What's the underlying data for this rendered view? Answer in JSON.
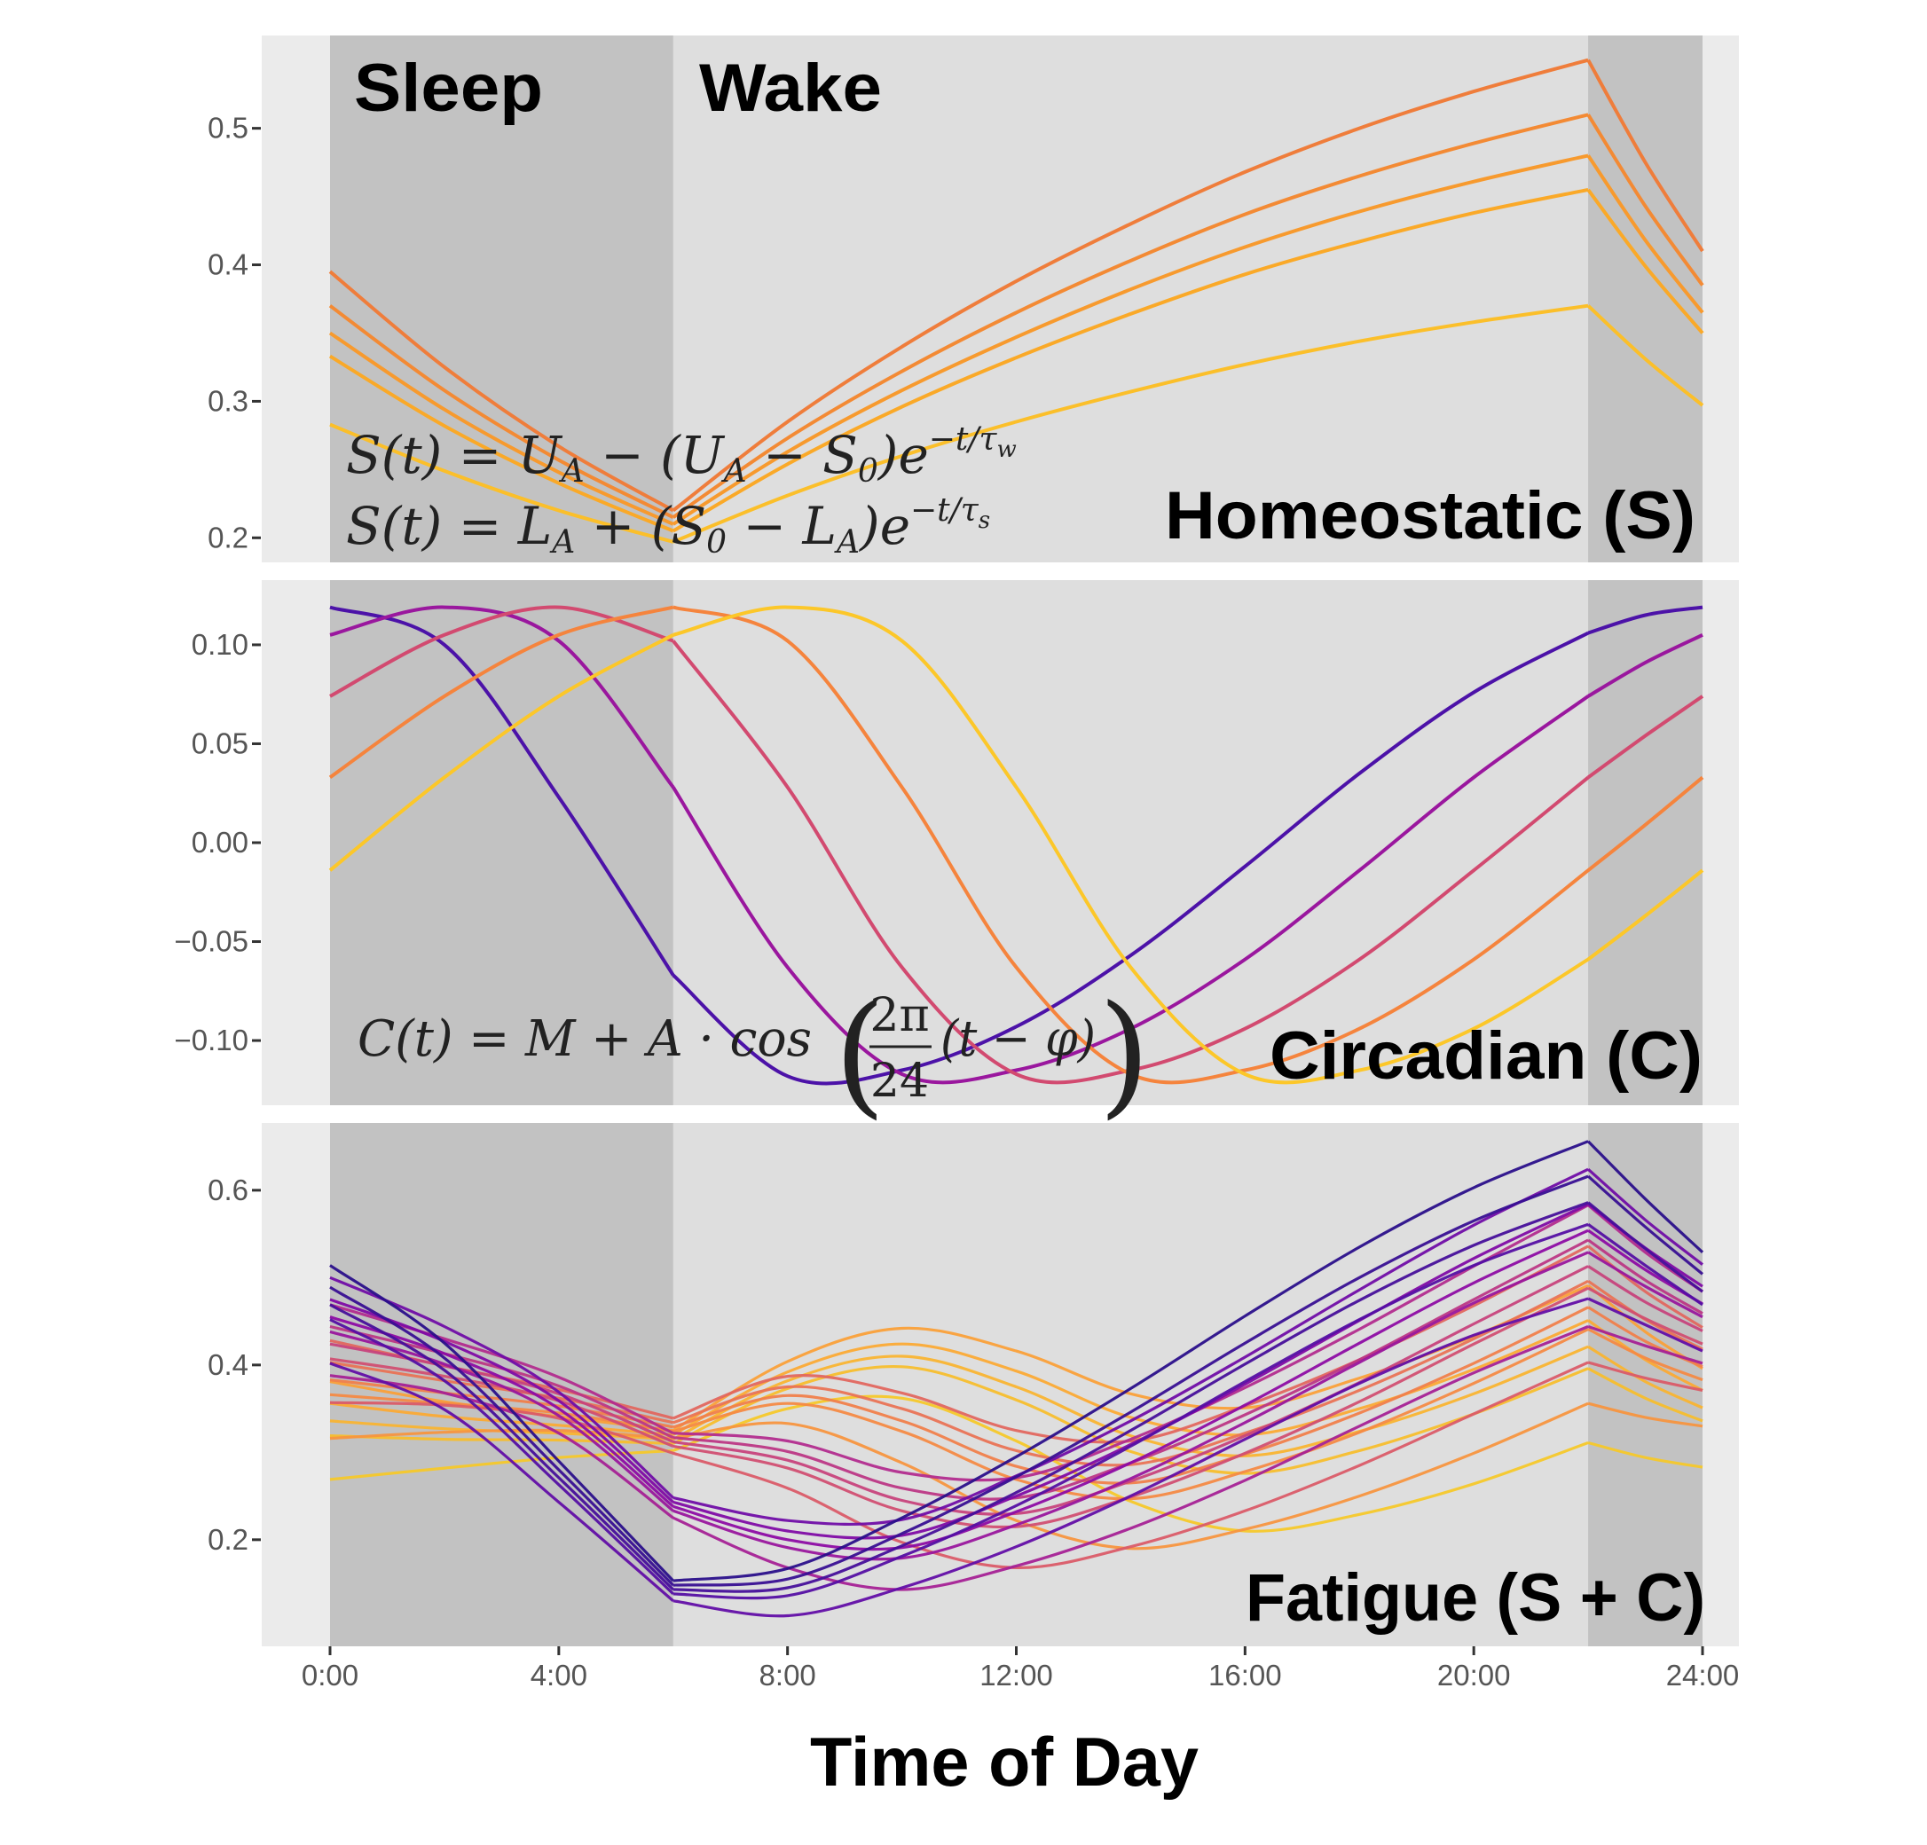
{
  "chart_data": [
    {
      "type": "line",
      "panel_label": "Homeostatic (S)",
      "x_unit": "hour of day",
      "ylim": [
        0.182,
        0.568
      ],
      "yticks": [
        0.2,
        0.3,
        0.4,
        0.5
      ],
      "ytick_labels": [
        "0.2",
        "0.3",
        "0.4",
        "0.5"
      ],
      "x": [
        0,
        2,
        4,
        6,
        8,
        10,
        12,
        14,
        16,
        18,
        20,
        22,
        23,
        24
      ],
      "series": [
        {
          "color": "#ef7d3b",
          "values": [
            0.395,
            0.325,
            0.267,
            0.22,
            0.285,
            0.34,
            0.388,
            0.43,
            0.468,
            0.5,
            0.527,
            0.55,
            0.475,
            0.41
          ]
        },
        {
          "color": "#f38a34",
          "values": [
            0.37,
            0.308,
            0.257,
            0.215,
            0.273,
            0.322,
            0.365,
            0.403,
            0.437,
            0.465,
            0.489,
            0.51,
            0.443,
            0.385
          ]
        },
        {
          "color": "#f79a2e",
          "values": [
            0.35,
            0.294,
            0.248,
            0.21,
            0.263,
            0.308,
            0.347,
            0.382,
            0.413,
            0.439,
            0.461,
            0.48,
            0.418,
            0.365
          ]
        },
        {
          "color": "#faa928",
          "values": [
            0.333,
            0.282,
            0.24,
            0.205,
            0.254,
            0.296,
            0.332,
            0.364,
            0.393,
            0.417,
            0.438,
            0.455,
            0.399,
            0.35
          ]
        },
        {
          "color": "#fbbf2a",
          "values": [
            0.283,
            0.249,
            0.22,
            0.197,
            0.231,
            0.26,
            0.285,
            0.307,
            0.327,
            0.344,
            0.358,
            0.37,
            0.331,
            0.297
          ]
        }
      ],
      "equations": {
        "wake": [
          "S(t) = ",
          "U",
          "A",
          " − (",
          "U",
          "A",
          " − ",
          "S",
          "0",
          ")",
          "e",
          "−t/τ",
          "w"
        ],
        "sleep": [
          "S(t) = ",
          "L",
          "A",
          " + (",
          "S",
          "0",
          " − ",
          "L",
          "A",
          ")",
          "e",
          "−t/τ",
          "s"
        ]
      }
    },
    {
      "type": "line",
      "panel_label": "Circadian (C)",
      "ylim": [
        -0.1327,
        0.1327
      ],
      "yticks": [
        0.1,
        0.05,
        0.0,
        -0.05,
        -0.1
      ],
      "ytick_labels": [
        "0.10",
        "0.05",
        "0.00",
        "−0.05",
        "−0.10"
      ],
      "x": [
        0,
        2,
        4,
        6,
        8,
        10,
        12,
        14,
        16,
        18,
        20,
        22,
        23,
        24
      ],
      "series": [
        {
          "color": "#4c12a8",
          "values": [
            0.119,
            0.1,
            0.023,
            -0.067,
            -0.118,
            -0.115,
            -0.093,
            -0.057,
            -0.012,
            0.035,
            0.076,
            0.106,
            0.115,
            0.119
          ]
        },
        {
          "color": "#9a179e",
          "values": [
            0.105,
            0.119,
            0.102,
            0.028,
            -0.063,
            -0.117,
            -0.115,
            -0.094,
            -0.059,
            -0.014,
            0.033,
            0.074,
            0.091,
            0.105
          ]
        },
        {
          "color": "#d24a70",
          "values": [
            0.074,
            0.105,
            0.119,
            0.102,
            0.028,
            -0.063,
            -0.117,
            -0.115,
            -0.094,
            -0.059,
            -0.014,
            0.033,
            0.054,
            0.074
          ]
        },
        {
          "color": "#f5843d",
          "values": [
            0.033,
            0.074,
            0.105,
            0.119,
            0.102,
            0.028,
            -0.063,
            -0.117,
            -0.115,
            -0.094,
            -0.059,
            -0.014,
            0.009,
            0.033
          ]
        },
        {
          "color": "#fcc729",
          "values": [
            -0.014,
            0.033,
            0.074,
            0.105,
            0.119,
            0.102,
            0.028,
            -0.063,
            -0.117,
            -0.115,
            -0.094,
            -0.059,
            -0.037,
            -0.014
          ]
        }
      ],
      "equation": {
        "lhs": "C(t) = M + A · cos",
        "num": "2π",
        "den": "24",
        "arg": "(t − φ)",
        "lparen": "(",
        "rparen": ")"
      }
    },
    {
      "type": "line",
      "panel_label": "Fatigue (S + C)",
      "ylim": [
        0.078,
        0.677
      ],
      "yticks": [
        0.2,
        0.4,
        0.6
      ],
      "ytick_labels": [
        "0.2",
        "0.4",
        "0.6"
      ],
      "series_rule": "S + C",
      "palette": [
        "#2a0f8a",
        "#5a0fa6",
        "#8b0aa5",
        "#b52f8c",
        "#d8576b",
        "#f1814a",
        "#fca636",
        "#f5c82a"
      ]
    }
  ],
  "shared": {
    "xlim": [
      0,
      24
    ],
    "xticks": [
      0,
      4,
      8,
      12,
      16,
      20,
      24
    ],
    "xtick_labels": [
      "0:00",
      "4:00",
      "8:00",
      "12:00",
      "16:00",
      "20:00",
      "24:00"
    ],
    "xlabel": "Time of Day",
    "sleep_periods": [
      [
        0,
        6
      ],
      [
        22,
        24
      ]
    ],
    "sleep_label": "Sleep",
    "wake_label": "Wake",
    "colors": {
      "panel_bg": "#ebebeb",
      "sleep_band": "#c2c2c2",
      "wake_band": "#dedede",
      "tick_text": "#555555"
    }
  }
}
